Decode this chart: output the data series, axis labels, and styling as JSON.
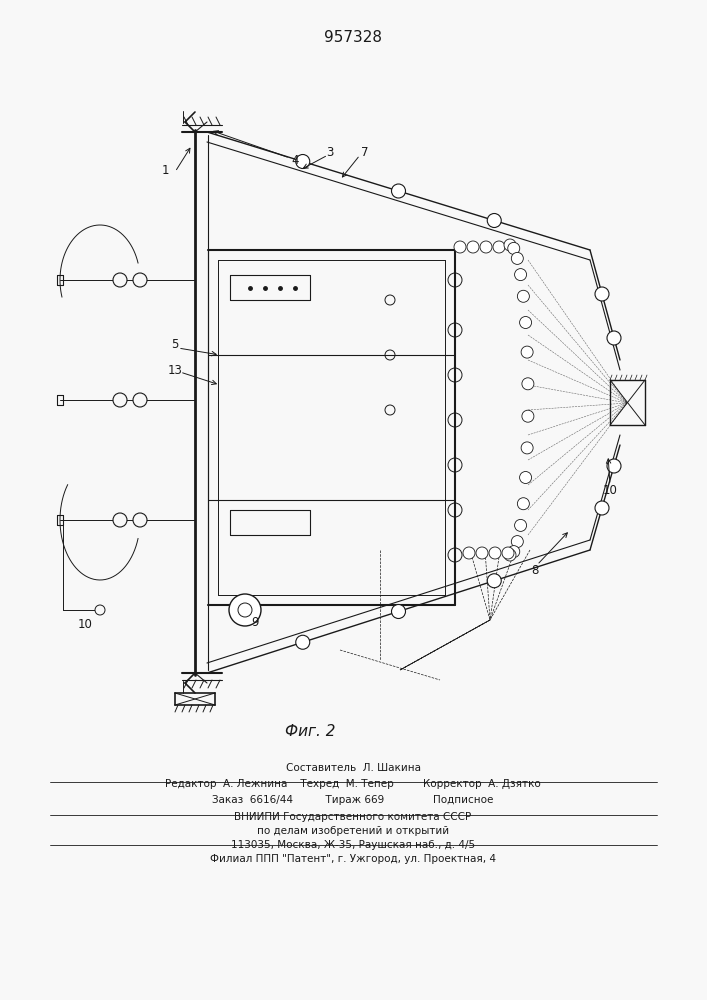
{
  "patent_number": "957328",
  "fig_label": "Фиг. 2",
  "line_color": "#1a1a1a",
  "bg_color": "#f8f8f8",
  "footer": {
    "line1": "Составитель  Л. Шакина",
    "line2": "Редактор  А. Лежнина    Техред  М. Тепер         Корректор  А. Дзятко",
    "line3": "Заказ  6616/44          Тираж 669               Подписное",
    "line4": "ВНИИПИ Государственного комитета СССР",
    "line5": "по делам изобретений и открытий",
    "line6": "113035, Москва, Ж-35, Раушская наб., д. 4/5",
    "line7": "Филиал ППП \"Патент\", г. Ужгород, ул. Проектная, 4"
  }
}
